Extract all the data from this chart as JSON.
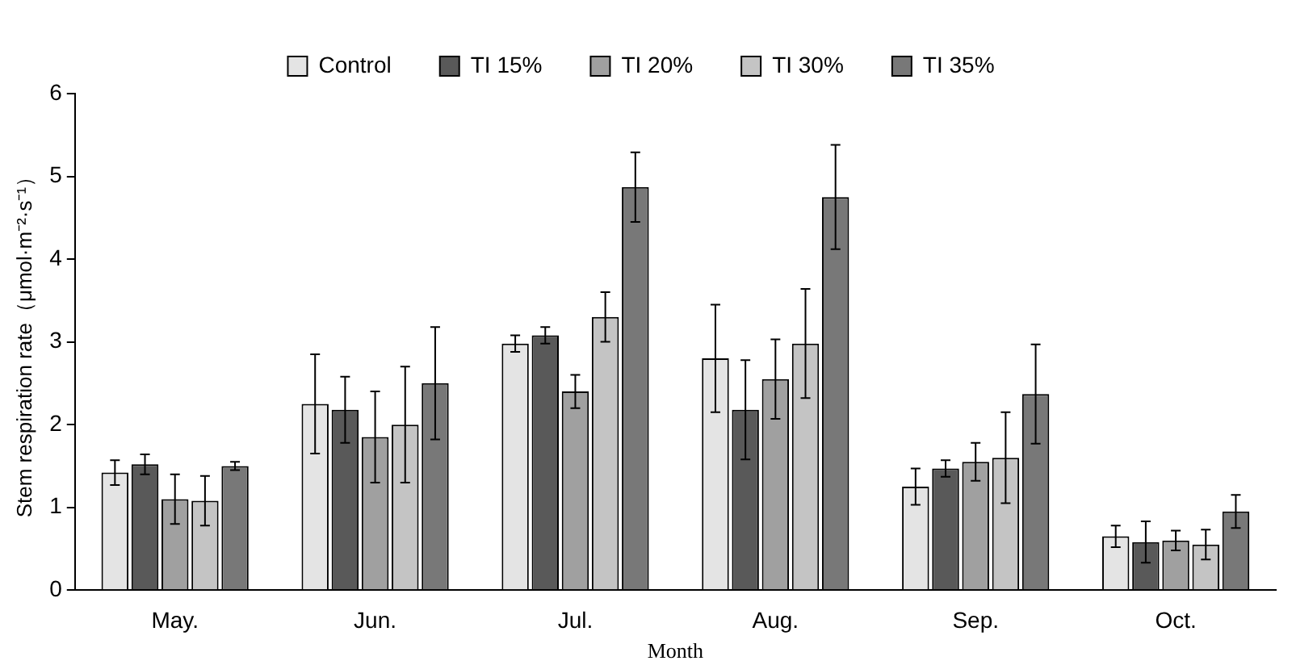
{
  "chart_data": {
    "type": "bar",
    "xlabel": "Month",
    "ylabel": "Stem respiration rate（μmol·m⁻²·s⁻¹）",
    "categories": [
      "May.",
      "Jun.",
      "Jul.",
      "Aug.",
      "Sep.",
      "Oct."
    ],
    "series": [
      {
        "name": "Control",
        "color": "#e4e4e4",
        "values": [
          1.42,
          2.25,
          2.98,
          2.8,
          1.25,
          0.65
        ],
        "errors": [
          0.15,
          0.6,
          0.1,
          0.65,
          0.22,
          0.13
        ]
      },
      {
        "name": "TI 15%",
        "color": "#595959",
        "values": [
          1.52,
          2.18,
          3.08,
          2.18,
          1.47,
          0.58
        ],
        "errors": [
          0.12,
          0.4,
          0.1,
          0.6,
          0.1,
          0.25
        ]
      },
      {
        "name": "TI 20%",
        "color": "#a0a0a0",
        "values": [
          1.1,
          1.85,
          2.4,
          2.55,
          1.55,
          0.6
        ],
        "errors": [
          0.3,
          0.55,
          0.2,
          0.48,
          0.23,
          0.12
        ]
      },
      {
        "name": "TI 30%",
        "color": "#c4c4c4",
        "values": [
          1.08,
          2.0,
          3.3,
          2.98,
          1.6,
          0.55
        ],
        "errors": [
          0.3,
          0.7,
          0.3,
          0.66,
          0.55,
          0.18
        ]
      },
      {
        "name": "TI 35%",
        "color": "#787878",
        "values": [
          1.5,
          2.5,
          4.87,
          4.75,
          2.37,
          0.95
        ],
        "errors": [
          0.05,
          0.68,
          0.42,
          0.63,
          0.6,
          0.2
        ]
      }
    ],
    "ylim": [
      0,
      6
    ],
    "yticks": [
      0,
      1,
      2,
      3,
      4,
      5,
      6
    ],
    "grid": false,
    "legend": "top"
  }
}
